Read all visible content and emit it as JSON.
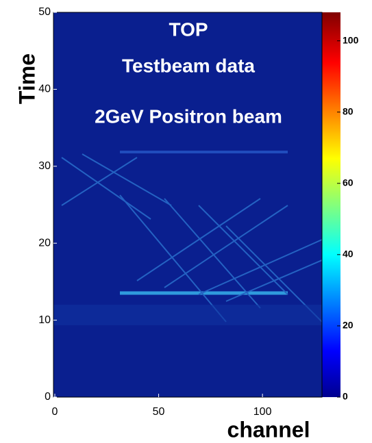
{
  "chart_data": {
    "type": "heatmap",
    "annotations": [
      "TOP",
      "Testbeam data",
      "2GeV Positron beam"
    ],
    "x_label": "channel",
    "y_label": "Time",
    "xlim": [
      0,
      128
    ],
    "xticks": [
      0,
      50,
      100
    ],
    "ylim": [
      0,
      50
    ],
    "yticks": [
      0,
      10,
      20,
      30,
      40,
      50
    ],
    "colorbar": {
      "lim": [
        0,
        108
      ],
      "ticks": [
        0,
        20,
        40,
        60,
        80,
        100
      ],
      "colormap": "jet"
    }
  }
}
